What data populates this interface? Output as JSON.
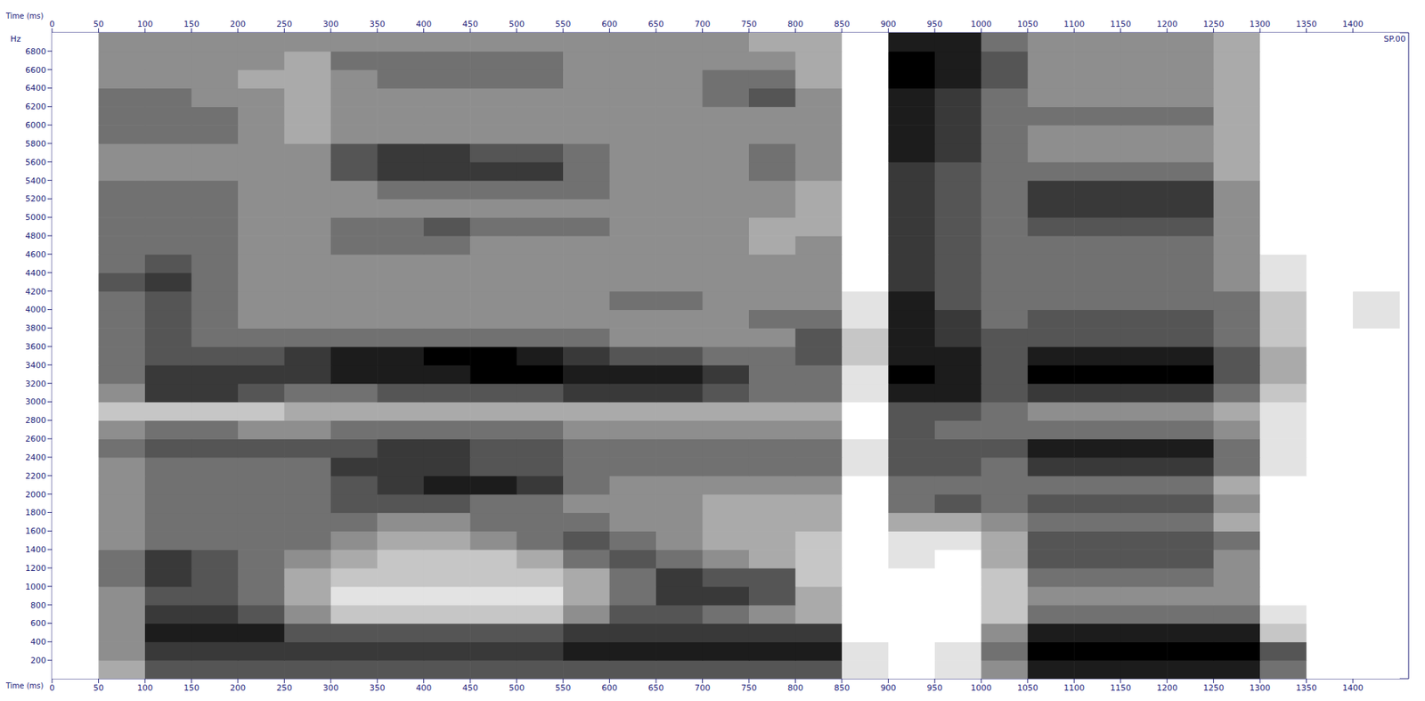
{
  "chart_data": {
    "type": "heatmap",
    "x_label": "Time (ms)",
    "y_label": "Hz",
    "annotation": "SP.00",
    "xlim": [
      0,
      1460
    ],
    "xticks": [
      0,
      50,
      100,
      150,
      200,
      250,
      300,
      350,
      400,
      450,
      500,
      550,
      600,
      650,
      700,
      750,
      800,
      850,
      900,
      950,
      1000,
      1050,
      1100,
      1150,
      1200,
      1250,
      1300,
      1350,
      1400
    ],
    "ylim": [
      0,
      7000
    ],
    "yticks": [
      200,
      400,
      600,
      800,
      1000,
      1200,
      1400,
      1600,
      1800,
      2000,
      2200,
      2400,
      2600,
      2800,
      3000,
      3200,
      3400,
      3600,
      3800,
      4000,
      4200,
      4400,
      4600,
      4800,
      5000,
      5200,
      5400,
      5600,
      5800,
      6000,
      6200,
      6400,
      6600,
      6800
    ],
    "color": "#000000",
    "color_range": [
      0,
      9
    ],
    "x_bins": [
      0,
      50,
      100,
      150,
      200,
      250,
      300,
      350,
      400,
      450,
      500,
      550,
      600,
      650,
      700,
      750,
      800,
      850,
      900,
      950,
      1000,
      1050,
      1100,
      1150,
      1200,
      1250,
      1300,
      1350,
      1400,
      1450
    ],
    "y_bins": [
      0,
      200,
      400,
      600,
      800,
      1000,
      1200,
      1400,
      1600,
      1800,
      2000,
      2200,
      2400,
      2600,
      2800,
      3000,
      3200,
      3400,
      3600,
      3800,
      4000,
      4200,
      4400,
      4600,
      4800,
      5000,
      5200,
      5400,
      5600,
      5800,
      6000,
      6200,
      6400,
      6600,
      6800,
      7000
    ],
    "cells": [
      [
        0,
        3,
        6,
        6,
        6,
        6,
        6,
        6,
        6,
        6,
        6,
        6,
        6,
        6,
        6,
        6,
        6,
        1,
        0,
        1,
        4,
        8,
        8,
        8,
        8,
        8,
        5,
        0,
        0
      ],
      [
        0,
        4,
        7,
        7,
        7,
        7,
        7,
        7,
        7,
        7,
        7,
        8,
        8,
        8,
        8,
        8,
        8,
        1,
        0,
        1,
        5,
        9,
        9,
        9,
        9,
        9,
        6,
        0,
        0
      ],
      [
        0,
        4,
        8,
        8,
        8,
        6,
        6,
        6,
        6,
        6,
        6,
        7,
        7,
        7,
        7,
        7,
        7,
        0,
        0,
        0,
        4,
        8,
        8,
        8,
        8,
        8,
        2,
        0,
        0
      ],
      [
        0,
        4,
        7,
        7,
        6,
        4,
        2,
        2,
        2,
        2,
        2,
        4,
        6,
        6,
        5,
        4,
        3,
        0,
        0,
        0,
        2,
        5,
        5,
        5,
        5,
        5,
        1,
        0,
        0
      ],
      [
        0,
        4,
        6,
        6,
        5,
        3,
        1,
        1,
        1,
        1,
        1,
        3,
        5,
        7,
        7,
        6,
        3,
        0,
        0,
        0,
        2,
        4,
        4,
        4,
        4,
        4,
        0,
        0,
        0
      ],
      [
        0,
        5,
        7,
        6,
        5,
        3,
        2,
        2,
        2,
        2,
        2,
        3,
        5,
        7,
        6,
        6,
        2,
        0,
        0,
        0,
        2,
        5,
        5,
        5,
        5,
        4,
        0,
        0,
        0
      ],
      [
        0,
        5,
        7,
        6,
        5,
        4,
        3,
        2,
        2,
        2,
        3,
        5,
        6,
        5,
        4,
        3,
        2,
        0,
        1,
        0,
        3,
        6,
        6,
        6,
        6,
        4,
        0,
        0,
        0
      ],
      [
        0,
        4,
        5,
        5,
        5,
        5,
        4,
        3,
        3,
        4,
        5,
        6,
        5,
        4,
        3,
        3,
        2,
        0,
        1,
        1,
        3,
        6,
        6,
        6,
        6,
        5,
        0,
        0,
        0
      ],
      [
        0,
        4,
        5,
        5,
        5,
        5,
        5,
        4,
        4,
        5,
        5,
        5,
        4,
        4,
        3,
        3,
        3,
        0,
        3,
        3,
        4,
        5,
        5,
        5,
        5,
        3,
        0,
        0,
        0
      ],
      [
        0,
        4,
        5,
        5,
        5,
        5,
        6,
        6,
        6,
        5,
        5,
        4,
        4,
        4,
        3,
        3,
        3,
        0,
        5,
        6,
        5,
        6,
        6,
        6,
        6,
        4,
        0,
        0,
        0
      ],
      [
        0,
        4,
        5,
        5,
        5,
        5,
        6,
        7,
        8,
        8,
        7,
        5,
        4,
        4,
        4,
        4,
        4,
        0,
        5,
        5,
        5,
        5,
        5,
        5,
        5,
        3,
        0,
        0,
        0
      ],
      [
        0,
        4,
        5,
        5,
        5,
        5,
        7,
        7,
        7,
        6,
        6,
        5,
        5,
        5,
        5,
        5,
        5,
        1,
        6,
        6,
        5,
        7,
        7,
        7,
        7,
        5,
        1,
        0,
        0
      ],
      [
        0,
        5,
        6,
        6,
        6,
        6,
        6,
        7,
        7,
        6,
        6,
        5,
        5,
        5,
        5,
        5,
        5,
        1,
        6,
        6,
        6,
        8,
        8,
        8,
        8,
        5,
        1,
        0,
        0
      ],
      [
        0,
        4,
        5,
        5,
        4,
        4,
        5,
        5,
        5,
        5,
        5,
        4,
        4,
        4,
        4,
        4,
        4,
        0,
        6,
        5,
        5,
        5,
        5,
        5,
        5,
        4,
        1,
        0,
        0
      ],
      [
        0,
        2,
        2,
        2,
        2,
        3,
        3,
        3,
        3,
        3,
        3,
        3,
        3,
        3,
        3,
        3,
        3,
        0,
        6,
        6,
        5,
        4,
        4,
        4,
        4,
        3,
        1,
        0,
        0
      ],
      [
        0,
        4,
        7,
        7,
        6,
        5,
        5,
        6,
        6,
        6,
        6,
        7,
        7,
        7,
        6,
        5,
        5,
        1,
        8,
        8,
        6,
        7,
        7,
        7,
        7,
        5,
        2,
        0,
        0
      ],
      [
        0,
        5,
        7,
        7,
        7,
        7,
        8,
        8,
        8,
        9,
        9,
        8,
        8,
        8,
        7,
        5,
        5,
        1,
        9,
        8,
        6,
        9,
        9,
        9,
        9,
        6,
        3,
        0,
        0
      ],
      [
        0,
        5,
        6,
        6,
        6,
        7,
        8,
        8,
        9,
        9,
        8,
        7,
        6,
        6,
        5,
        5,
        6,
        2,
        8,
        8,
        6,
        8,
        8,
        8,
        8,
        6,
        3,
        0,
        0
      ],
      [
        0,
        5,
        6,
        5,
        5,
        5,
        5,
        5,
        5,
        5,
        5,
        5,
        4,
        4,
        4,
        4,
        6,
        2,
        8,
        7,
        6,
        6,
        6,
        6,
        6,
        5,
        2,
        0,
        0
      ],
      [
        0,
        5,
        6,
        5,
        4,
        4,
        4,
        4,
        4,
        4,
        4,
        4,
        4,
        4,
        4,
        5,
        5,
        1,
        8,
        7,
        5,
        6,
        6,
        6,
        6,
        5,
        2,
        0,
        1
      ],
      [
        0,
        5,
        6,
        5,
        4,
        4,
        4,
        4,
        4,
        4,
        4,
        4,
        5,
        5,
        4,
        4,
        4,
        1,
        8,
        6,
        5,
        5,
        5,
        5,
        5,
        5,
        2,
        0,
        1
      ],
      [
        0,
        6,
        7,
        5,
        4,
        4,
        4,
        4,
        4,
        4,
        4,
        4,
        4,
        4,
        4,
        4,
        4,
        0,
        7,
        6,
        5,
        5,
        5,
        5,
        5,
        4,
        1,
        0,
        0
      ],
      [
        0,
        5,
        6,
        5,
        4,
        4,
        4,
        4,
        4,
        4,
        4,
        4,
        4,
        4,
        4,
        4,
        4,
        0,
        7,
        6,
        5,
        5,
        5,
        5,
        5,
        4,
        1,
        0,
        0
      ],
      [
        0,
        5,
        5,
        5,
        4,
        4,
        5,
        5,
        5,
        4,
        4,
        4,
        4,
        4,
        4,
        3,
        4,
        0,
        7,
        6,
        5,
        5,
        5,
        5,
        5,
        4,
        0,
        0,
        0
      ],
      [
        0,
        5,
        5,
        5,
        4,
        4,
        5,
        5,
        6,
        5,
        5,
        5,
        4,
        4,
        4,
        3,
        3,
        0,
        7,
        6,
        5,
        6,
        6,
        6,
        6,
        4,
        0,
        0,
        0
      ],
      [
        0,
        5,
        5,
        5,
        4,
        4,
        4,
        4,
        4,
        4,
        4,
        4,
        4,
        4,
        4,
        4,
        3,
        0,
        7,
        6,
        5,
        7,
        7,
        7,
        7,
        4,
        0,
        0,
        0
      ],
      [
        0,
        5,
        5,
        5,
        4,
        4,
        4,
        5,
        5,
        5,
        5,
        5,
        4,
        4,
        4,
        4,
        3,
        0,
        7,
        6,
        5,
        7,
        7,
        7,
        7,
        4,
        0,
        0,
        0
      ],
      [
        0,
        4,
        4,
        4,
        4,
        4,
        6,
        7,
        7,
        7,
        7,
        5,
        4,
        4,
        4,
        5,
        4,
        0,
        7,
        6,
        5,
        5,
        5,
        5,
        5,
        3,
        0,
        0,
        0
      ],
      [
        0,
        4,
        4,
        4,
        4,
        4,
        6,
        7,
        7,
        6,
        6,
        5,
        4,
        4,
        4,
        5,
        4,
        0,
        8,
        7,
        5,
        4,
        4,
        4,
        4,
        3,
        0,
        0,
        0
      ],
      [
        0,
        5,
        5,
        5,
        4,
        3,
        4,
        4,
        4,
        4,
        4,
        4,
        4,
        4,
        4,
        4,
        4,
        0,
        8,
        7,
        5,
        4,
        4,
        4,
        4,
        3,
        0,
        0,
        0
      ],
      [
        0,
        5,
        5,
        5,
        4,
        3,
        4,
        4,
        4,
        4,
        4,
        4,
        4,
        4,
        4,
        4,
        4,
        0,
        8,
        7,
        5,
        5,
        5,
        5,
        5,
        3,
        0,
        0,
        0
      ],
      [
        0,
        5,
        5,
        4,
        4,
        3,
        4,
        4,
        4,
        4,
        4,
        4,
        4,
        4,
        5,
        6,
        4,
        0,
        8,
        7,
        5,
        4,
        4,
        4,
        4,
        3,
        0,
        0,
        0
      ],
      [
        0,
        4,
        4,
        4,
        3,
        3,
        4,
        5,
        5,
        5,
        5,
        4,
        4,
        4,
        5,
        5,
        3,
        0,
        9,
        8,
        6,
        4,
        4,
        4,
        4,
        3,
        0,
        0,
        0
      ],
      [
        0,
        4,
        4,
        4,
        4,
        3,
        5,
        5,
        5,
        5,
        5,
        4,
        4,
        4,
        4,
        4,
        3,
        0,
        9,
        8,
        6,
        4,
        4,
        4,
        4,
        3,
        0,
        0,
        0
      ],
      [
        0,
        4,
        4,
        4,
        4,
        4,
        4,
        4,
        4,
        4,
        4,
        4,
        4,
        4,
        4,
        3,
        3,
        0,
        8,
        8,
        5,
        4,
        4,
        4,
        4,
        3,
        0,
        0,
        0
      ]
    ]
  }
}
